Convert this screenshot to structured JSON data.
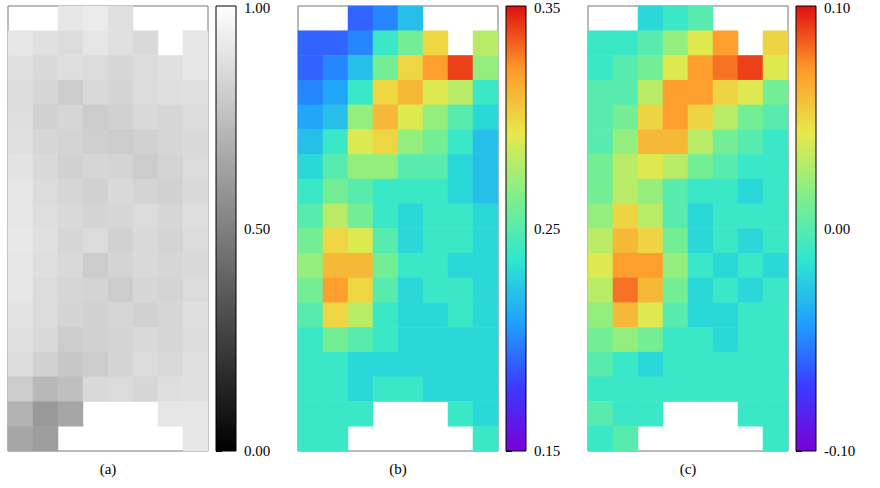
{
  "chart_data": [
    {
      "type": "heatmap",
      "title": "(a)",
      "colorbar_range": [
        0,
        1
      ],
      "colorbar_ticks": [
        {
          "value": 0,
          "label": "0.00"
        },
        {
          "value": 0.5,
          "label": "0.50"
        },
        {
          "value": 1,
          "label": "1.00"
        }
      ],
      "cells": [
        [
          null,
          null,
          0.9,
          0.92,
          0.88,
          null,
          null,
          null
        ],
        [
          0.9,
          0.88,
          0.86,
          0.9,
          0.88,
          0.85,
          null,
          0.9
        ],
        [
          0.88,
          0.85,
          0.87,
          0.86,
          0.84,
          0.86,
          0.88,
          0.9
        ],
        [
          0.86,
          0.84,
          0.8,
          0.85,
          0.83,
          0.86,
          0.87,
          0.88
        ],
        [
          0.87,
          0.82,
          0.84,
          0.8,
          0.82,
          0.85,
          0.84,
          0.86
        ],
        [
          0.88,
          0.84,
          0.83,
          0.81,
          0.8,
          0.82,
          0.84,
          0.85
        ],
        [
          0.89,
          0.85,
          0.82,
          0.84,
          0.83,
          0.8,
          0.83,
          0.86
        ],
        [
          0.9,
          0.86,
          0.84,
          0.82,
          0.85,
          0.83,
          0.82,
          0.85
        ],
        [
          0.9,
          0.87,
          0.85,
          0.83,
          0.84,
          0.86,
          0.84,
          0.87
        ],
        [
          0.91,
          0.88,
          0.84,
          0.86,
          0.82,
          0.85,
          0.83,
          0.86
        ],
        [
          0.9,
          0.87,
          0.85,
          0.8,
          0.83,
          0.85,
          0.84,
          0.85
        ],
        [
          0.9,
          0.86,
          0.84,
          0.83,
          0.8,
          0.84,
          0.83,
          0.86
        ],
        [
          0.89,
          0.86,
          0.83,
          0.82,
          0.84,
          0.82,
          0.84,
          0.87
        ],
        [
          0.88,
          0.85,
          0.8,
          0.82,
          0.83,
          0.85,
          0.84,
          0.86
        ],
        [
          0.86,
          0.82,
          0.78,
          0.8,
          0.83,
          0.86,
          0.85,
          0.88
        ],
        [
          0.8,
          0.72,
          0.75,
          0.85,
          0.86,
          0.84,
          0.87,
          0.88
        ],
        [
          0.7,
          0.6,
          0.65,
          null,
          null,
          null,
          0.9,
          0.9
        ],
        [
          0.65,
          0.62,
          null,
          null,
          null,
          null,
          null,
          0.9
        ]
      ]
    },
    {
      "type": "heatmap",
      "title": "(b)",
      "colorbar_range": [
        0.15,
        0.35
      ],
      "colorbar_ticks": [
        0.15,
        0.25,
        0.35
      ],
      "cells": [
        [
          null,
          null,
          0.19,
          0.2,
          0.22,
          null,
          null,
          null
        ],
        [
          0.19,
          0.19,
          0.2,
          0.24,
          0.26,
          0.3,
          null,
          0.28
        ],
        [
          0.19,
          0.2,
          0.22,
          0.26,
          0.3,
          0.32,
          0.34,
          0.27
        ],
        [
          0.2,
          0.21,
          0.24,
          0.3,
          0.31,
          0.29,
          0.28,
          0.24
        ],
        [
          0.21,
          0.22,
          0.27,
          0.31,
          0.29,
          0.27,
          0.25,
          0.23
        ],
        [
          0.22,
          0.24,
          0.29,
          0.3,
          0.27,
          0.26,
          0.24,
          0.22
        ],
        [
          0.23,
          0.25,
          0.27,
          0.27,
          0.25,
          0.25,
          0.23,
          0.22
        ],
        [
          0.24,
          0.26,
          0.25,
          0.24,
          0.24,
          0.24,
          0.23,
          0.22
        ],
        [
          0.25,
          0.28,
          0.26,
          0.24,
          0.23,
          0.24,
          0.24,
          0.23
        ],
        [
          0.26,
          0.3,
          0.29,
          0.25,
          0.23,
          0.24,
          0.24,
          0.23
        ],
        [
          0.27,
          0.31,
          0.31,
          0.26,
          0.24,
          0.24,
          0.23,
          0.23
        ],
        [
          0.26,
          0.32,
          0.3,
          0.25,
          0.23,
          0.24,
          0.24,
          0.23
        ],
        [
          0.25,
          0.3,
          0.28,
          0.24,
          0.23,
          0.23,
          0.24,
          0.23
        ],
        [
          0.24,
          0.26,
          0.25,
          0.24,
          0.23,
          0.23,
          0.23,
          0.23
        ],
        [
          0.24,
          0.24,
          0.23,
          0.23,
          0.23,
          0.23,
          0.23,
          0.23
        ],
        [
          0.24,
          0.24,
          0.23,
          0.24,
          0.24,
          0.23,
          0.23,
          0.23
        ],
        [
          0.24,
          0.24,
          0.24,
          null,
          null,
          null,
          0.24,
          0.23
        ],
        [
          0.24,
          0.24,
          null,
          null,
          null,
          null,
          null,
          0.24
        ]
      ]
    },
    {
      "type": "heatmap",
      "title": "(c)",
      "colorbar_range": [
        -0.1,
        0.1
      ],
      "colorbar_ticks": [
        {
          "value": -0.1,
          "label": "-0.10"
        },
        {
          "value": 0,
          "label": "0.00"
        },
        {
          "value": 0.1,
          "label": "0.10"
        }
      ],
      "cells": [
        [
          null,
          null,
          -0.02,
          -0.01,
          0.0,
          null,
          null,
          null
        ],
        [
          -0.01,
          -0.01,
          0.0,
          0.02,
          0.04,
          0.07,
          null,
          0.05
        ],
        [
          -0.01,
          0.0,
          0.01,
          0.04,
          0.07,
          0.08,
          0.09,
          0.04
        ],
        [
          0.0,
          0.0,
          0.03,
          0.07,
          0.07,
          0.05,
          0.04,
          0.01
        ],
        [
          0.0,
          0.01,
          0.05,
          0.07,
          0.05,
          0.03,
          0.01,
          0.0
        ],
        [
          0.0,
          0.02,
          0.06,
          0.06,
          0.03,
          0.01,
          0.0,
          -0.01
        ],
        [
          0.01,
          0.03,
          0.04,
          0.03,
          0.01,
          0.0,
          -0.01,
          -0.01
        ],
        [
          0.01,
          0.03,
          0.02,
          0.0,
          -0.01,
          -0.01,
          -0.02,
          -0.01
        ],
        [
          0.02,
          0.05,
          0.03,
          0.0,
          -0.02,
          -0.01,
          -0.01,
          -0.01
        ],
        [
          0.03,
          0.06,
          0.05,
          0.01,
          -0.02,
          -0.01,
          -0.02,
          -0.01
        ],
        [
          0.04,
          0.07,
          0.07,
          0.02,
          -0.01,
          -0.02,
          -0.01,
          -0.02
        ],
        [
          0.03,
          0.08,
          0.06,
          0.01,
          -0.02,
          -0.01,
          -0.02,
          -0.01
        ],
        [
          0.02,
          0.06,
          0.04,
          0.0,
          -0.02,
          -0.02,
          -0.01,
          -0.01
        ],
        [
          0.01,
          0.02,
          0.01,
          -0.01,
          -0.01,
          -0.02,
          -0.01,
          -0.01
        ],
        [
          0.0,
          -0.01,
          -0.02,
          -0.01,
          -0.01,
          -0.01,
          -0.01,
          -0.01
        ],
        [
          -0.01,
          -0.01,
          -0.01,
          -0.01,
          -0.01,
          -0.01,
          -0.01,
          -0.01
        ],
        [
          0.0,
          -0.01,
          -0.01,
          null,
          null,
          null,
          -0.01,
          -0.01
        ],
        [
          -0.01,
          0.0,
          null,
          null,
          null,
          null,
          null,
          -0.01
        ]
      ]
    }
  ]
}
